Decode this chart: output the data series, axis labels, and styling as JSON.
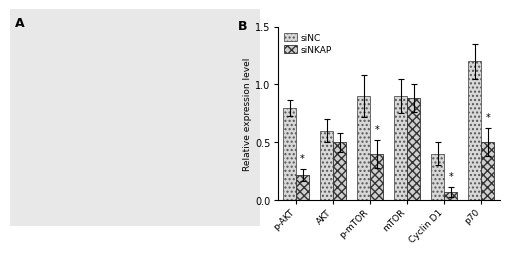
{
  "categories": [
    "p-AKT",
    "AKT",
    "p-mTOR",
    "mTOR",
    "Cyclin D1",
    "p70"
  ],
  "siNC_values": [
    0.8,
    0.6,
    0.9,
    0.9,
    0.4,
    1.2
  ],
  "siNKAP_values": [
    0.22,
    0.5,
    0.4,
    0.88,
    0.07,
    0.5
  ],
  "siNC_errors": [
    0.07,
    0.1,
    0.18,
    0.15,
    0.1,
    0.15
  ],
  "siNKAP_errors": [
    0.05,
    0.08,
    0.12,
    0.12,
    0.04,
    0.12
  ],
  "siNC_label": "siNC",
  "siNKAP_label": "siNKAP",
  "ylabel": "Relative expression level",
  "ylim": [
    0,
    1.5
  ],
  "yticks": [
    0.0,
    0.5,
    1.0,
    1.5
  ],
  "panel_label_left": "A",
  "panel_label_right": "B",
  "bar_width": 0.35,
  "siNC_hatch": "....",
  "siNKAP_hatch": "xxxx",
  "siNC_color": "#d8d8d8",
  "siNKAP_color": "#d0d0d0",
  "siNC_edge": "#555555",
  "siNKAP_edge": "#333333",
  "background_color": "#ffffff",
  "sig_siNKAP_indices": [
    0,
    2,
    4,
    5
  ],
  "sig_siNC_indices": []
}
